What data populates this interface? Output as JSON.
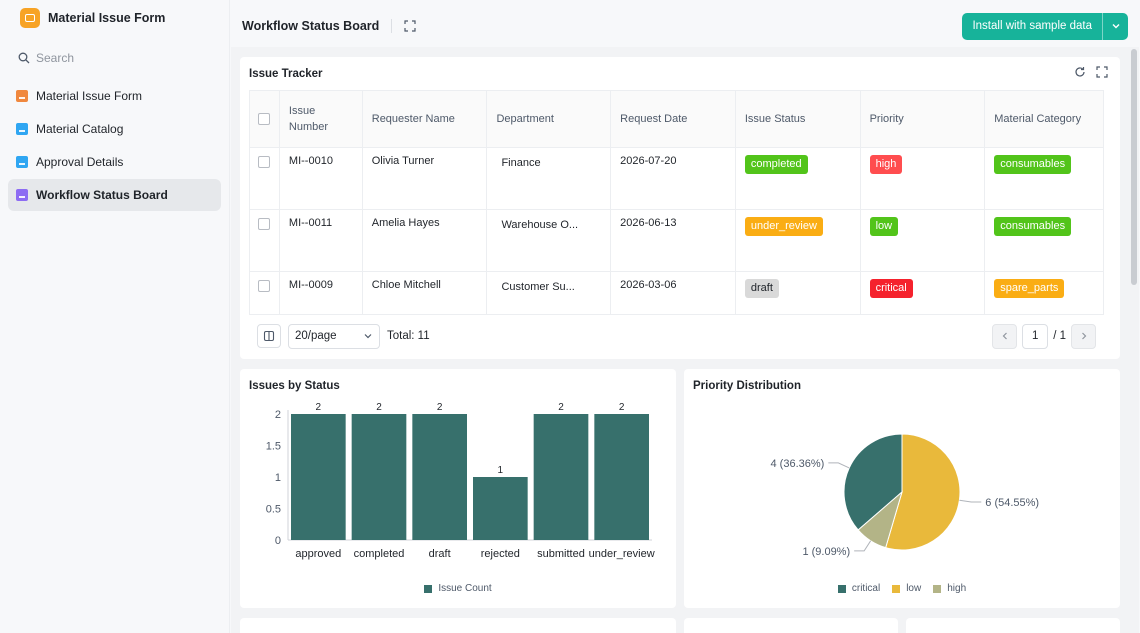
{
  "app": {
    "title": "Material Issue Form"
  },
  "search": {
    "placeholder": "Search"
  },
  "sidebar": {
    "items": [
      {
        "label": "Material Issue Form",
        "icon": "chart-icon"
      },
      {
        "label": "Material Catalog",
        "icon": "table-icon"
      },
      {
        "label": "Approval Details",
        "icon": "table-icon"
      },
      {
        "label": "Workflow Status Board",
        "icon": "dashboard-icon"
      }
    ]
  },
  "header": {
    "title": "Workflow Status Board",
    "install_label": "Install with sample data"
  },
  "tracker": {
    "title": "Issue Tracker",
    "columns": [
      "Issue Number",
      "Requester Name",
      "Department",
      "Request Date",
      "Issue Status",
      "Priority",
      "Material Category"
    ],
    "rows": [
      {
        "number": "MI--0010",
        "requester": "Olivia Turner",
        "department": "Finance",
        "date": "2026-07-20",
        "status": "completed",
        "priority": "high",
        "category": "consumables"
      },
      {
        "number": "MI--0011",
        "requester": "Amelia Hayes",
        "department": "Warehouse O...",
        "date": "2026-06-13",
        "status": "under_review",
        "priority": "low",
        "category": "consumables"
      },
      {
        "number": "MI--0009",
        "requester": "Chloe Mitchell",
        "department": "Customer Su...",
        "date": "2026-03-06",
        "status": "draft",
        "priority": "critical",
        "category": "spare_parts"
      }
    ],
    "pager": {
      "page_size": "20/page",
      "total": "Total: 11",
      "current_page": "1",
      "page_count": "/ 1"
    }
  },
  "tag_colors": {
    "completed": "#52c41a",
    "under_review": "#faad14",
    "draft": "#d9d9d9",
    "high": "#ff4d4f",
    "low": "#52c41a",
    "critical": "#f5222d",
    "consumables": "#52c41a",
    "spare_parts": "#faad14"
  },
  "bar_title": "Issues by Status",
  "pie_title": "Priority Distribution",
  "chart_data": [
    {
      "type": "bar",
      "categories": [
        "approved",
        "completed",
        "draft",
        "rejected",
        "submitted",
        "under_review"
      ],
      "series": [
        {
          "name": "Issue Count",
          "values": [
            2,
            2,
            2,
            1,
            2,
            2
          ],
          "color": "#37706c"
        }
      ],
      "ylim": [
        0,
        2
      ],
      "yticks": [
        "0",
        "0.5",
        "1",
        "1.5",
        "2"
      ],
      "legend": "bottom"
    },
    {
      "type": "pie",
      "slices": [
        {
          "name": "critical",
          "value": 4,
          "label": "4 (36.36%)",
          "color": "#37706c"
        },
        {
          "name": "low",
          "value": 6,
          "label": "6 (54.55%)",
          "color": "#e9b93b"
        },
        {
          "name": "high",
          "value": 1,
          "label": "1 (9.09%)",
          "color": "#b3b487"
        }
      ],
      "legend": "bottom"
    }
  ]
}
